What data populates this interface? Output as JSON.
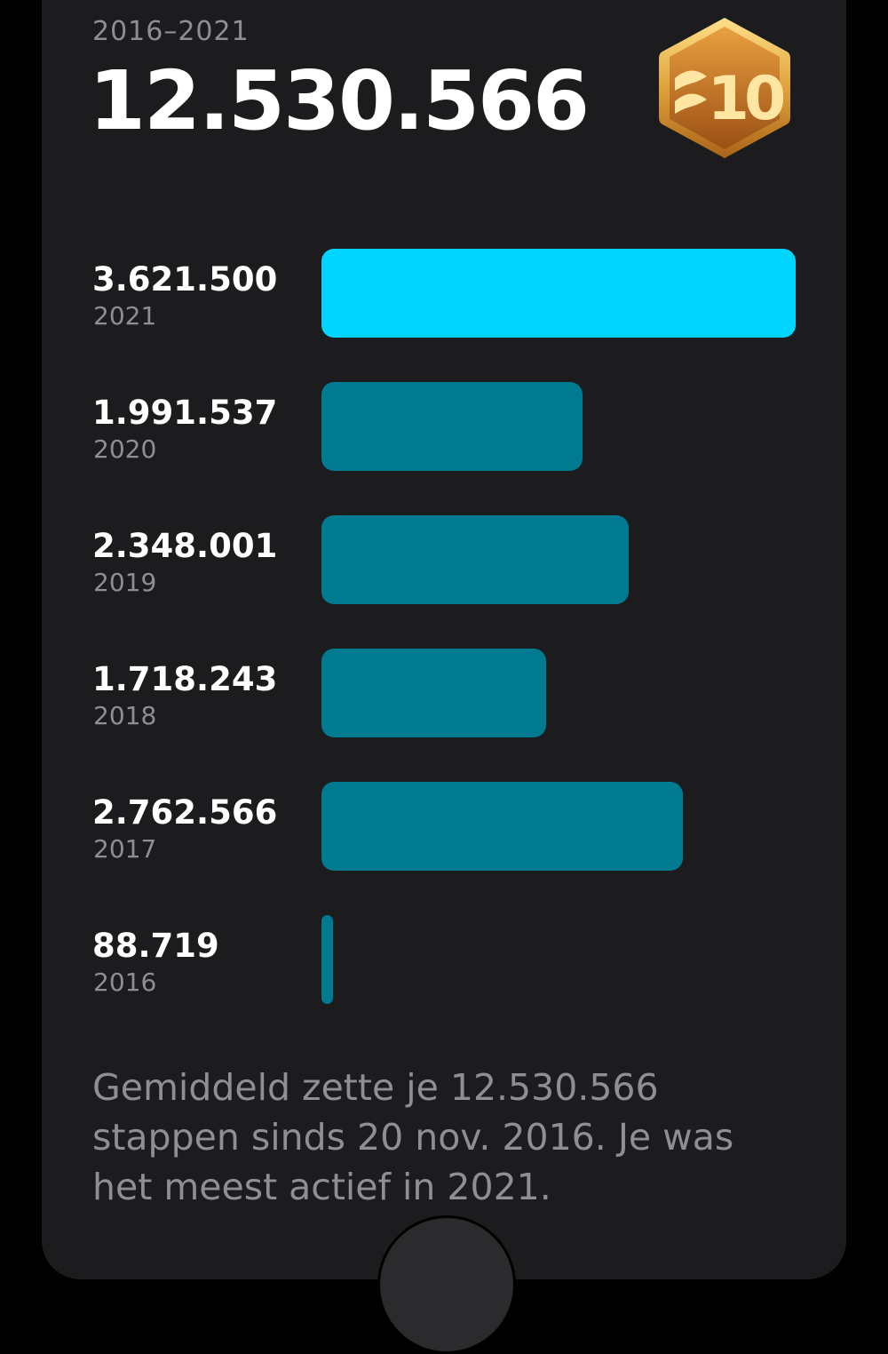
{
  "header": {
    "range": "2016–2021",
    "total": "12.530.566"
  },
  "badge": {
    "label": "10",
    "icon": "achievement-badge-icon"
  },
  "colors": {
    "highlight": "#00d4ff",
    "bar": "#007a91",
    "background": "#1c1c1e"
  },
  "chart_data": {
    "type": "bar",
    "orientation": "horizontal",
    "categories": [
      "2021",
      "2020",
      "2019",
      "2018",
      "2017",
      "2016"
    ],
    "values": [
      3621500,
      1991537,
      2348001,
      1718243,
      2762566,
      88719
    ],
    "value_labels": [
      "3.621.500",
      "1.991.537",
      "2.348.001",
      "1.718.243",
      "2.762.566",
      "88.719"
    ],
    "highlight_index": 0,
    "xlim": [
      0,
      3621500
    ],
    "grid": false,
    "legend": "none"
  },
  "summary": "Gemiddeld zette je 12.530.566 stappen sinds 20 nov. 2016. Je was het meest actief in 2021."
}
